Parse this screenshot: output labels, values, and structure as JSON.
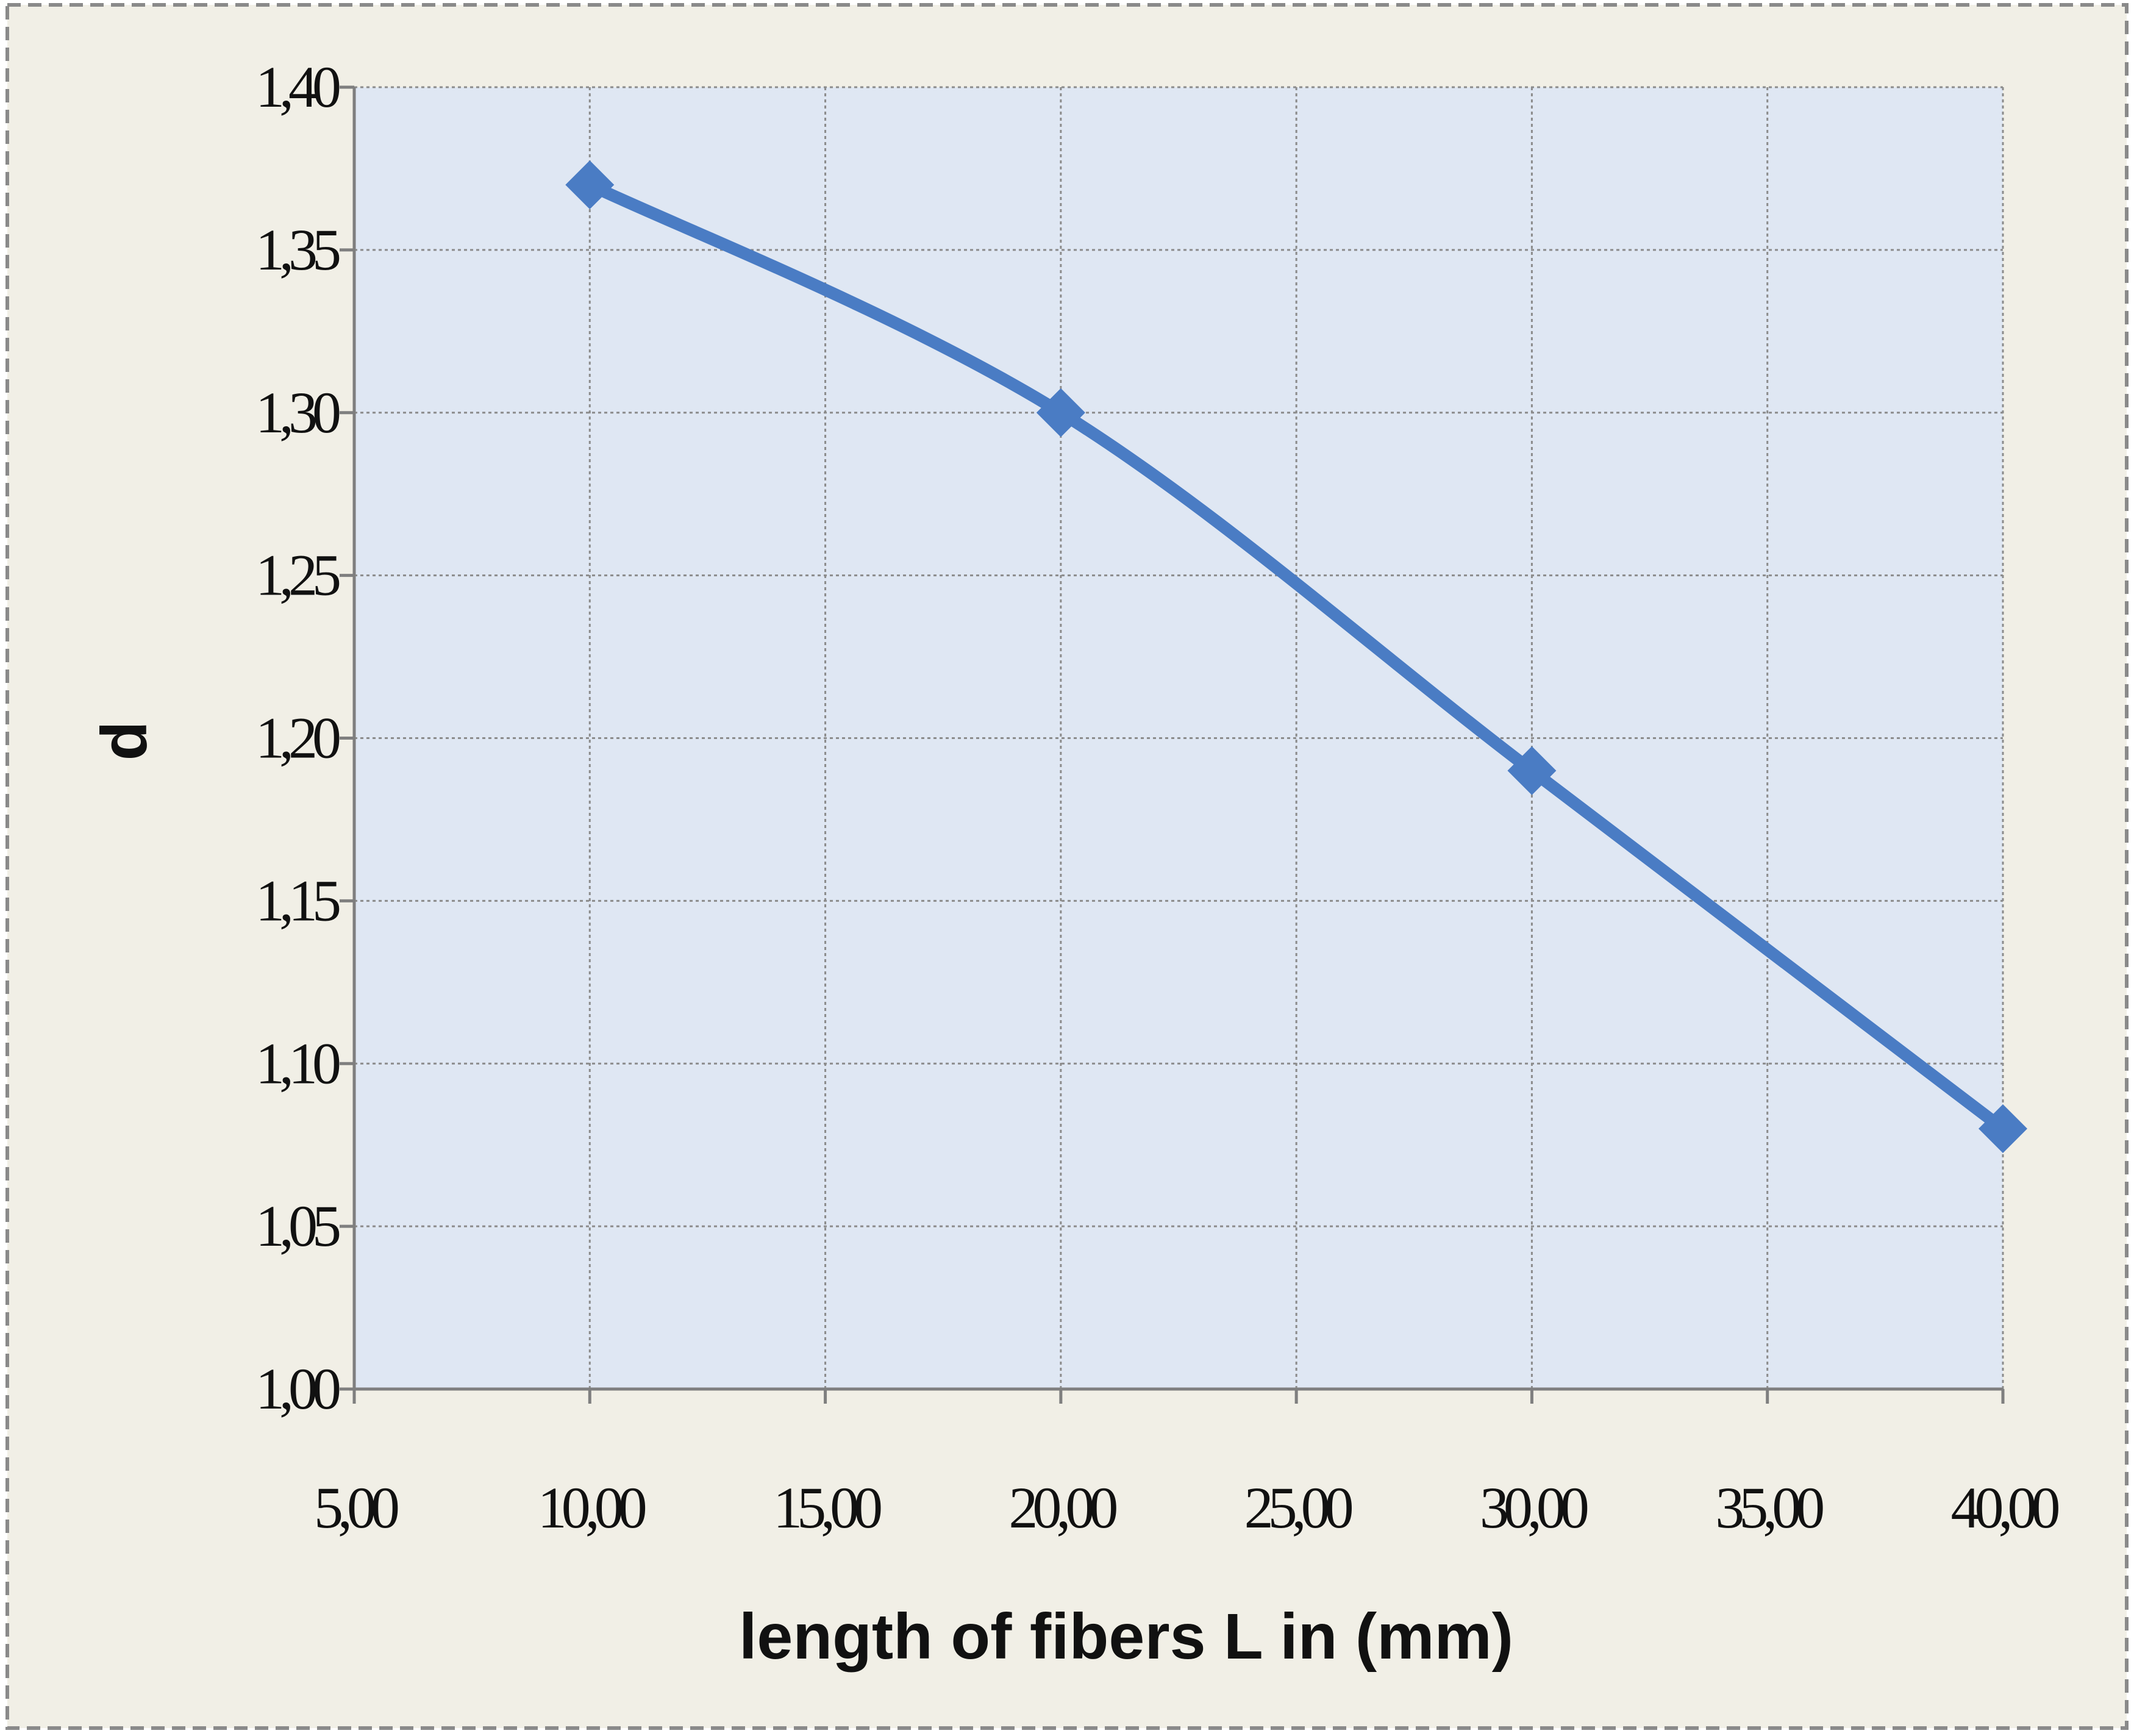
{
  "chart_data": {
    "type": "line",
    "title": "",
    "xlabel": "length of fibers L in (mm)",
    "ylabel": "d",
    "xlim": [
      5,
      40
    ],
    "ylim": [
      1.0,
      1.4
    ],
    "x_ticks": [
      5,
      10,
      15,
      20,
      25,
      30,
      35,
      40
    ],
    "y_ticks": [
      1.0,
      1.05,
      1.1,
      1.15,
      1.2,
      1.25,
      1.3,
      1.35,
      1.4
    ],
    "x_tick_labels": [
      "5,00",
      "10,00",
      "15,00",
      "20,00",
      "25,00",
      "30,00",
      "35,00",
      "40,00"
    ],
    "y_tick_labels": [
      "1,00",
      "1,05",
      "1,10",
      "1,15",
      "1,20",
      "1,25",
      "1,30",
      "1,35",
      "1,40"
    ],
    "grid": true,
    "legend": "none",
    "smooth": true,
    "marker": "diamond",
    "series": [
      {
        "color": "#4a7cc4",
        "x": [
          10,
          20,
          30,
          40
        ],
        "y": [
          1.37,
          1.3,
          1.19,
          1.08
        ]
      }
    ],
    "colors": {
      "page_background": "#f1efe6",
      "plot_background": "#dfe7f3",
      "border_dashed": "#8a8a8a",
      "grid": "#8c8c8c",
      "axis": "#7f7f7f"
    }
  }
}
